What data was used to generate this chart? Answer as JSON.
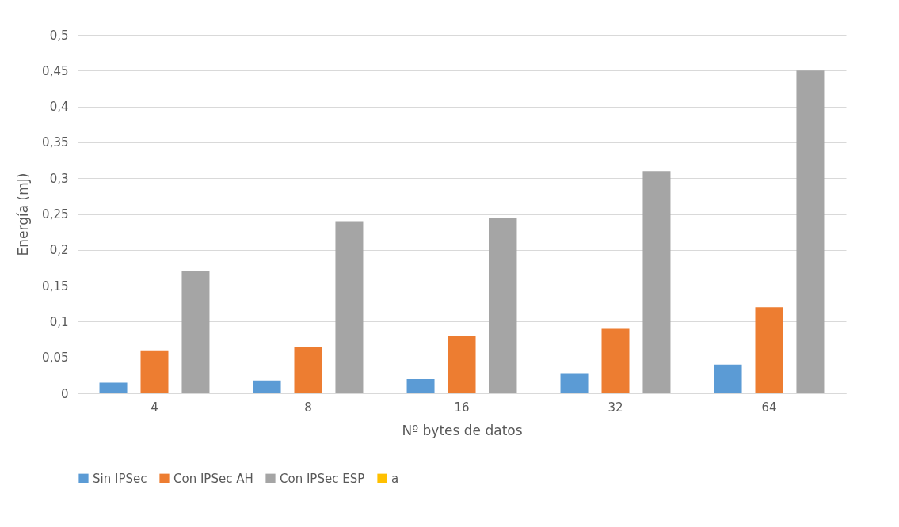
{
  "chart_data": {
    "type": "bar",
    "xlabel": "Nº bytes de datos",
    "ylabel": "Energía (mJ)",
    "categories": [
      "4",
      "8",
      "16",
      "32",
      "64"
    ],
    "series": [
      {
        "name": "Sin IPSec",
        "color": "#5b9bd5",
        "values": [
          0.015,
          0.018,
          0.02,
          0.027,
          0.04
        ]
      },
      {
        "name": "Con IPSec AH",
        "color": "#ed7d31",
        "values": [
          0.06,
          0.065,
          0.08,
          0.09,
          0.12
        ]
      },
      {
        "name": "Con IPSec ESP",
        "color": "#a5a5a5",
        "values": [
          0.17,
          0.24,
          0.245,
          0.31,
          0.45
        ]
      },
      {
        "name": "a",
        "color": "#ffc000",
        "values": [
          null,
          null,
          null,
          null,
          null
        ]
      }
    ],
    "ylim": [
      0,
      0.5
    ],
    "yticks": [
      0,
      {
        "value": 0.05,
        "label": "0,05"
      },
      {
        "value": 0.1,
        "label": "0,1"
      },
      {
        "value": 0.15,
        "label": "0,15"
      },
      {
        "value": 0.2,
        "label": "0,2"
      },
      {
        "value": 0.25,
        "label": "0,25"
      },
      {
        "value": 0.3,
        "label": "0,3"
      },
      {
        "value": 0.35,
        "label": "0,35"
      },
      {
        "value": 0.4,
        "label": "0,4"
      },
      {
        "value": 0.45,
        "label": "0,45"
      },
      {
        "value": 0.5,
        "label": "0,5"
      }
    ],
    "grid": "y",
    "legend": "bottom"
  }
}
